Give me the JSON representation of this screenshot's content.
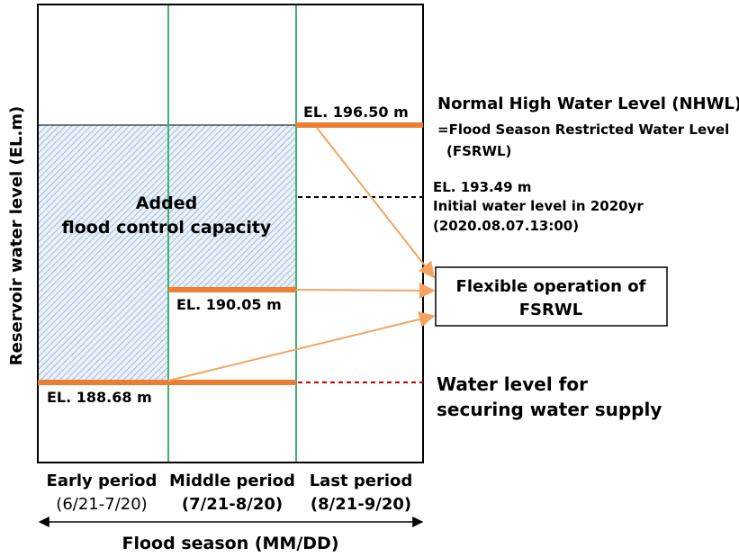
{
  "y_axis_label": "Reservoir water level (EL.m)",
  "x_axis_label": "Flood season (MM/DD)",
  "periods": [
    {
      "name": "Early period",
      "range": "(6/21-7/20)"
    },
    {
      "name": "Middle period",
      "range": "(7/21-8/20)"
    },
    {
      "name": "Last period",
      "range": "(8/21-9/20)"
    }
  ],
  "region_label": {
    "line1": "Added",
    "line2": "flood control capacity"
  },
  "levels": {
    "nhwl": "EL. 196.50 m",
    "middle": "EL. 190.05 m",
    "supply": "EL. 188.68 m"
  },
  "annotations": {
    "nhwl_line1": "Normal High Water Level (NHWL)",
    "nhwl_line2": "=Flood Season Restricted Water Level",
    "nhwl_line3": "(FSRWL)",
    "initial_line1": "EL. 193.49 m",
    "initial_line2": "Initial water level in 2020yr",
    "initial_line3": "(2020.08.07.13:00)",
    "supply_line1": "Water level for",
    "supply_line2": "securing water supply"
  },
  "box": {
    "line1": "Flexible operation of",
    "line2": "FSRWL"
  },
  "colors": {
    "level_line": "#ED7D31",
    "arrow": "#F4A460",
    "period_divider": "#3CB371",
    "dashed_black": "#000000",
    "dashed_red": "#C00000",
    "hatch": "#9DB7D5",
    "frame": "#000000"
  }
}
